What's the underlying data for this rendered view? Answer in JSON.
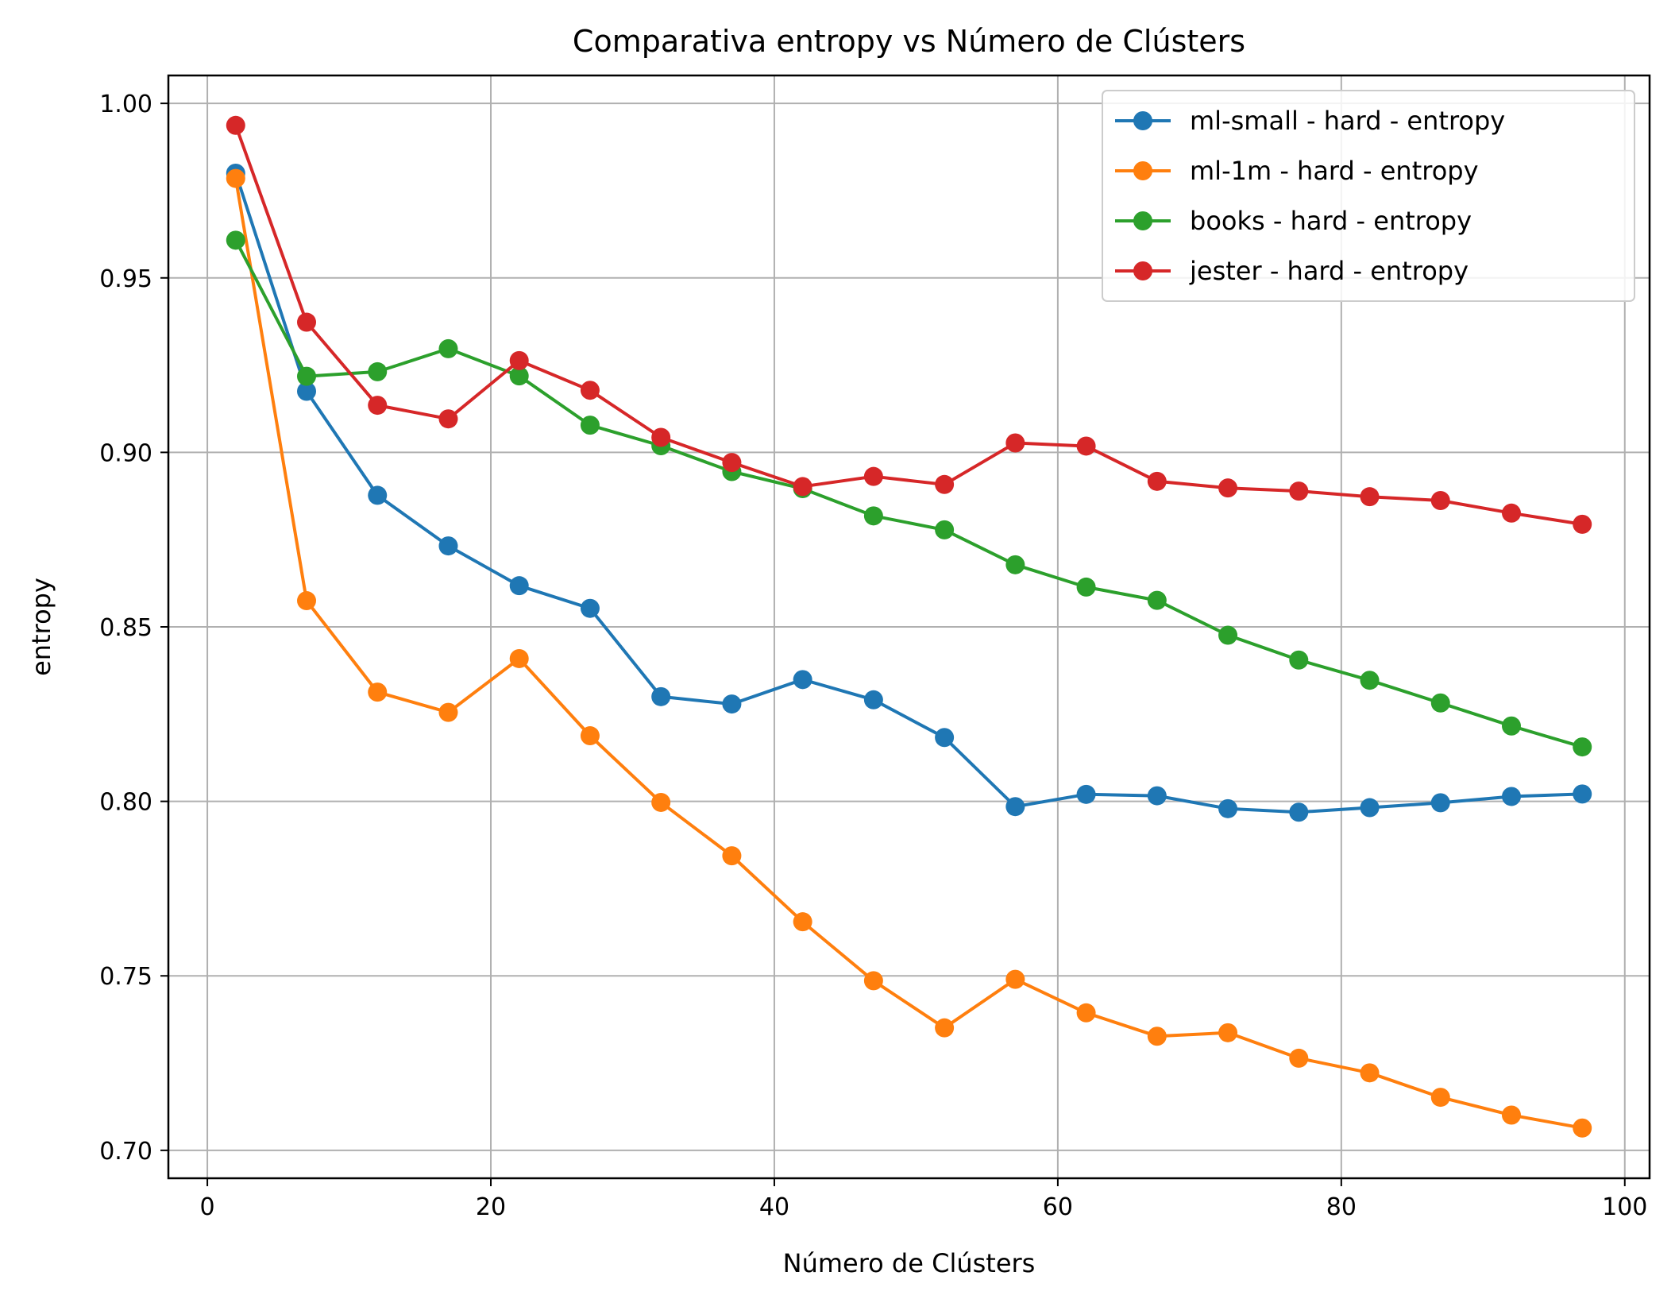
{
  "chart_data": {
    "type": "line",
    "title": "Comparativa entropy vs Número de Clústers",
    "xlabel": "Número de Clústers",
    "ylabel": "entropy",
    "xlim": [
      -2.75,
      101.75
    ],
    "ylim": [
      0.692,
      1.008
    ],
    "xticks": [
      0,
      20,
      40,
      60,
      80,
      100
    ],
    "xtick_labels": [
      "0",
      "20",
      "40",
      "60",
      "80",
      "100"
    ],
    "yticks": [
      0.7,
      0.75,
      0.8,
      0.85,
      0.9,
      0.95,
      1.0
    ],
    "ytick_labels": [
      "0.70",
      "0.75",
      "0.80",
      "0.85",
      "0.90",
      "0.95",
      "1.00"
    ],
    "grid": true,
    "legend_position": "top-right",
    "x": [
      2,
      7,
      12,
      17,
      22,
      27,
      32,
      37,
      42,
      47,
      52,
      57,
      62,
      67,
      72,
      77,
      82,
      87,
      92,
      97
    ],
    "series": [
      {
        "name": "ml-small - hard - entropy",
        "color": "#1f77b4",
        "values": [
          0.98,
          0.9175,
          0.8877,
          0.8732,
          0.8618,
          0.8553,
          0.83,
          0.8279,
          0.8349,
          0.8291,
          0.8183,
          0.7985,
          0.802,
          0.8016,
          0.7979,
          0.7969,
          0.7982,
          0.7996,
          0.8014,
          0.8021
        ]
      },
      {
        "name": "ml-1m - hard - entropy",
        "color": "#ff7f0e",
        "values": [
          0.9785,
          0.8575,
          0.8313,
          0.8255,
          0.8409,
          0.8188,
          0.7997,
          0.7844,
          0.7655,
          0.7486,
          0.7351,
          0.749,
          0.7394,
          0.7327,
          0.7337,
          0.7264,
          0.7222,
          0.7152,
          0.7101,
          0.7064
        ]
      },
      {
        "name": "books - hard - entropy",
        "color": "#2ca02c",
        "values": [
          0.9608,
          0.9218,
          0.9231,
          0.9297,
          0.9219,
          0.9078,
          0.9019,
          0.8945,
          0.8896,
          0.8818,
          0.8778,
          0.8678,
          0.8614,
          0.8576,
          0.8476,
          0.8405,
          0.8347,
          0.8282,
          0.8216,
          0.8156
        ]
      },
      {
        "name": "jester - hard - entropy",
        "color": "#d62728",
        "values": [
          0.9937,
          0.9373,
          0.9135,
          0.9096,
          0.9263,
          0.9178,
          0.9043,
          0.8971,
          0.8902,
          0.8931,
          0.8908,
          0.9027,
          0.9018,
          0.8917,
          0.8898,
          0.8889,
          0.8873,
          0.8862,
          0.8826,
          0.8794
        ]
      }
    ]
  }
}
